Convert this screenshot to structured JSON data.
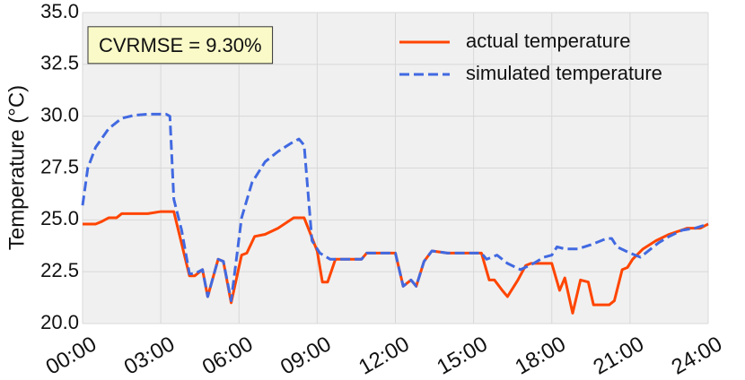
{
  "chart_data": {
    "type": "line",
    "ylabel": "Temperature (°C)",
    "annotation": "CVRMSE = 9.30%",
    "xlim": [
      0,
      24
    ],
    "xticks": [
      {
        "value": 0,
        "label": "00:00"
      },
      {
        "value": 3,
        "label": "03:00"
      },
      {
        "value": 6,
        "label": "06:00"
      },
      {
        "value": 9,
        "label": "09:00"
      },
      {
        "value": 12,
        "label": "12:00"
      },
      {
        "value": 15,
        "label": "15:00"
      },
      {
        "value": 18,
        "label": "18:00"
      },
      {
        "value": 21,
        "label": "21:00"
      },
      {
        "value": 24,
        "label": "24:00"
      }
    ],
    "ylim": [
      20,
      35
    ],
    "yticks": [
      {
        "value": 20,
        "label": "20.0"
      },
      {
        "value": 22.5,
        "label": "22.5"
      },
      {
        "value": 25,
        "label": "25.0"
      },
      {
        "value": 27.5,
        "label": "27.5"
      },
      {
        "value": 30,
        "label": "30.0"
      },
      {
        "value": 32.5,
        "label": "32.5"
      },
      {
        "value": 35,
        "label": "35.0"
      }
    ],
    "grid": true,
    "legend": "upper right",
    "series": [
      {
        "name": "actual temperature",
        "color": "#ff4500",
        "linestyle": "solid",
        "x": [
          0,
          0.5,
          0.7,
          1,
          1.3,
          1.5,
          2.5,
          3,
          3.5,
          4.1,
          4.3,
          4.6,
          4.8,
          5.2,
          5.4,
          5.7,
          6.1,
          6.3,
          6.6,
          7.0,
          7.5,
          8.1,
          8.5,
          9.0,
          9.2,
          9.4,
          9.7,
          10.7,
          10.9,
          12.0,
          12.3,
          12.6,
          12.8,
          13.1,
          13.4,
          14.0,
          15.3,
          15.6,
          15.8,
          16.1,
          16.3,
          16.7,
          17.0,
          17.2,
          18.0,
          18.3,
          18.5,
          18.8,
          19.1,
          19.4,
          19.6,
          20.2,
          20.4,
          20.7,
          20.9,
          21.1,
          21.5,
          22.0,
          22.5,
          23.2,
          23.7,
          24.0
        ],
        "values": [
          24.8,
          24.8,
          24.9,
          25.1,
          25.1,
          25.3,
          25.3,
          25.4,
          25.4,
          22.3,
          22.3,
          22.6,
          21.3,
          23.1,
          23.0,
          21.0,
          23.3,
          23.4,
          24.2,
          24.3,
          24.6,
          25.1,
          25.1,
          23.5,
          22.0,
          22.0,
          23.1,
          23.1,
          23.4,
          23.4,
          21.8,
          22.1,
          21.8,
          23.0,
          23.5,
          23.4,
          23.4,
          22.1,
          22.1,
          21.6,
          21.3,
          22.1,
          22.8,
          22.9,
          22.9,
          21.6,
          22.2,
          20.5,
          22.1,
          22.0,
          20.9,
          20.9,
          21.1,
          22.6,
          22.7,
          23.1,
          23.6,
          24.0,
          24.3,
          24.6,
          24.6,
          24.8
        ]
      },
      {
        "name": "simulated temperature",
        "color": "#4169e1",
        "linestyle": "dashed",
        "x": [
          0,
          0.2,
          0.5,
          1.0,
          1.5,
          2.0,
          2.5,
          3.2,
          3.35,
          3.5,
          3.8,
          4.1,
          4.3,
          4.6,
          4.8,
          5.2,
          5.4,
          5.7,
          6.1,
          6.5,
          7.0,
          7.5,
          8.0,
          8.3,
          8.5,
          8.8,
          9.1,
          9.5,
          10.7,
          10.9,
          12.0,
          12.3,
          12.6,
          12.8,
          13.1,
          13.4,
          14.0,
          15.3,
          15.5,
          15.9,
          16.3,
          16.8,
          17.3,
          17.7,
          18.0,
          18.2,
          18.5,
          19.0,
          19.5,
          20.1,
          20.3,
          20.5,
          21.0,
          21.4,
          21.8,
          22.1,
          22.5,
          23.0,
          23.5,
          24.0
        ],
        "values": [
          25.7,
          27.5,
          28.5,
          29.4,
          29.9,
          30.05,
          30.1,
          30.1,
          30.0,
          26.0,
          24.5,
          22.4,
          22.4,
          22.6,
          21.3,
          23.1,
          23.0,
          21.1,
          25.1,
          26.8,
          27.8,
          28.3,
          28.7,
          28.9,
          28.6,
          24.0,
          23.4,
          23.1,
          23.1,
          23.4,
          23.4,
          21.8,
          22.1,
          21.8,
          23.0,
          23.5,
          23.4,
          23.4,
          23.1,
          23.3,
          22.9,
          22.6,
          22.9,
          23.2,
          23.3,
          23.7,
          23.6,
          23.6,
          23.8,
          24.1,
          24.1,
          23.7,
          23.4,
          23.2,
          23.6,
          23.9,
          24.2,
          24.5,
          24.6,
          24.8
        ]
      }
    ]
  }
}
